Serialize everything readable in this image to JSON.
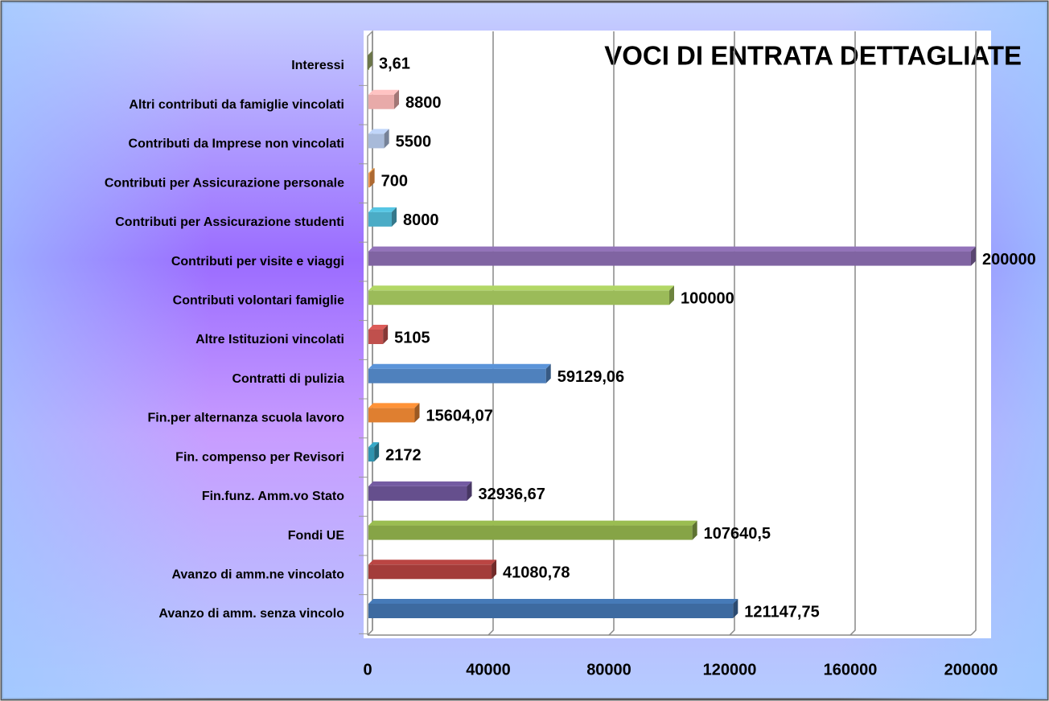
{
  "chart_data": {
    "type": "bar",
    "orientation": "horizontal",
    "title": "VOCI DI ENTRATA DETTAGLIATE",
    "categories": [
      "Avanzo di amm. senza vincolo",
      "Avanzo di amm.ne vincolato",
      "Fondi UE",
      "Fin.funz. Amm.vo Stato",
      "Fin. compenso per Revisori",
      "Fin.per alternanza scuola lavoro",
      "Contratti di pulizia",
      "Altre Istituzioni vincolati",
      "Contributi volontari famiglie",
      "Contributi per visite e viaggi",
      "Contributi per Assicurazione studenti",
      "Contributi per Assicurazione personale",
      "Contributi da Imprese non vincolati",
      "Altri contributi da famiglie vincolati",
      "Interessi"
    ],
    "values": [
      121147.75,
      41080.78,
      107640.5,
      32936.67,
      2172,
      15604.07,
      59129.06,
      5105,
      100000,
      200000,
      8000,
      700,
      5500,
      8800,
      3.61
    ],
    "value_labels": [
      "121147,75",
      "41080,78",
      "107640,5",
      "32936,67",
      "2172",
      "15604,07",
      "59129,06",
      "5105",
      "100000",
      "200000",
      "8000",
      "700",
      "5500",
      "8800",
      "3,61"
    ],
    "colors": [
      "#3d6aa0",
      "#a33c3a",
      "#86a446",
      "#654f8d",
      "#2f93ae",
      "#df7f30",
      "#4f81bd",
      "#c0504d",
      "#9bbb59",
      "#8064a2",
      "#4bacc6",
      "#f79646",
      "#a8bad9",
      "#e8aaa9",
      "#9aa86a"
    ],
    "xlim": [
      0,
      200000
    ],
    "xticks": [
      0,
      40000,
      80000,
      120000,
      160000,
      200000
    ],
    "grid": true
  }
}
